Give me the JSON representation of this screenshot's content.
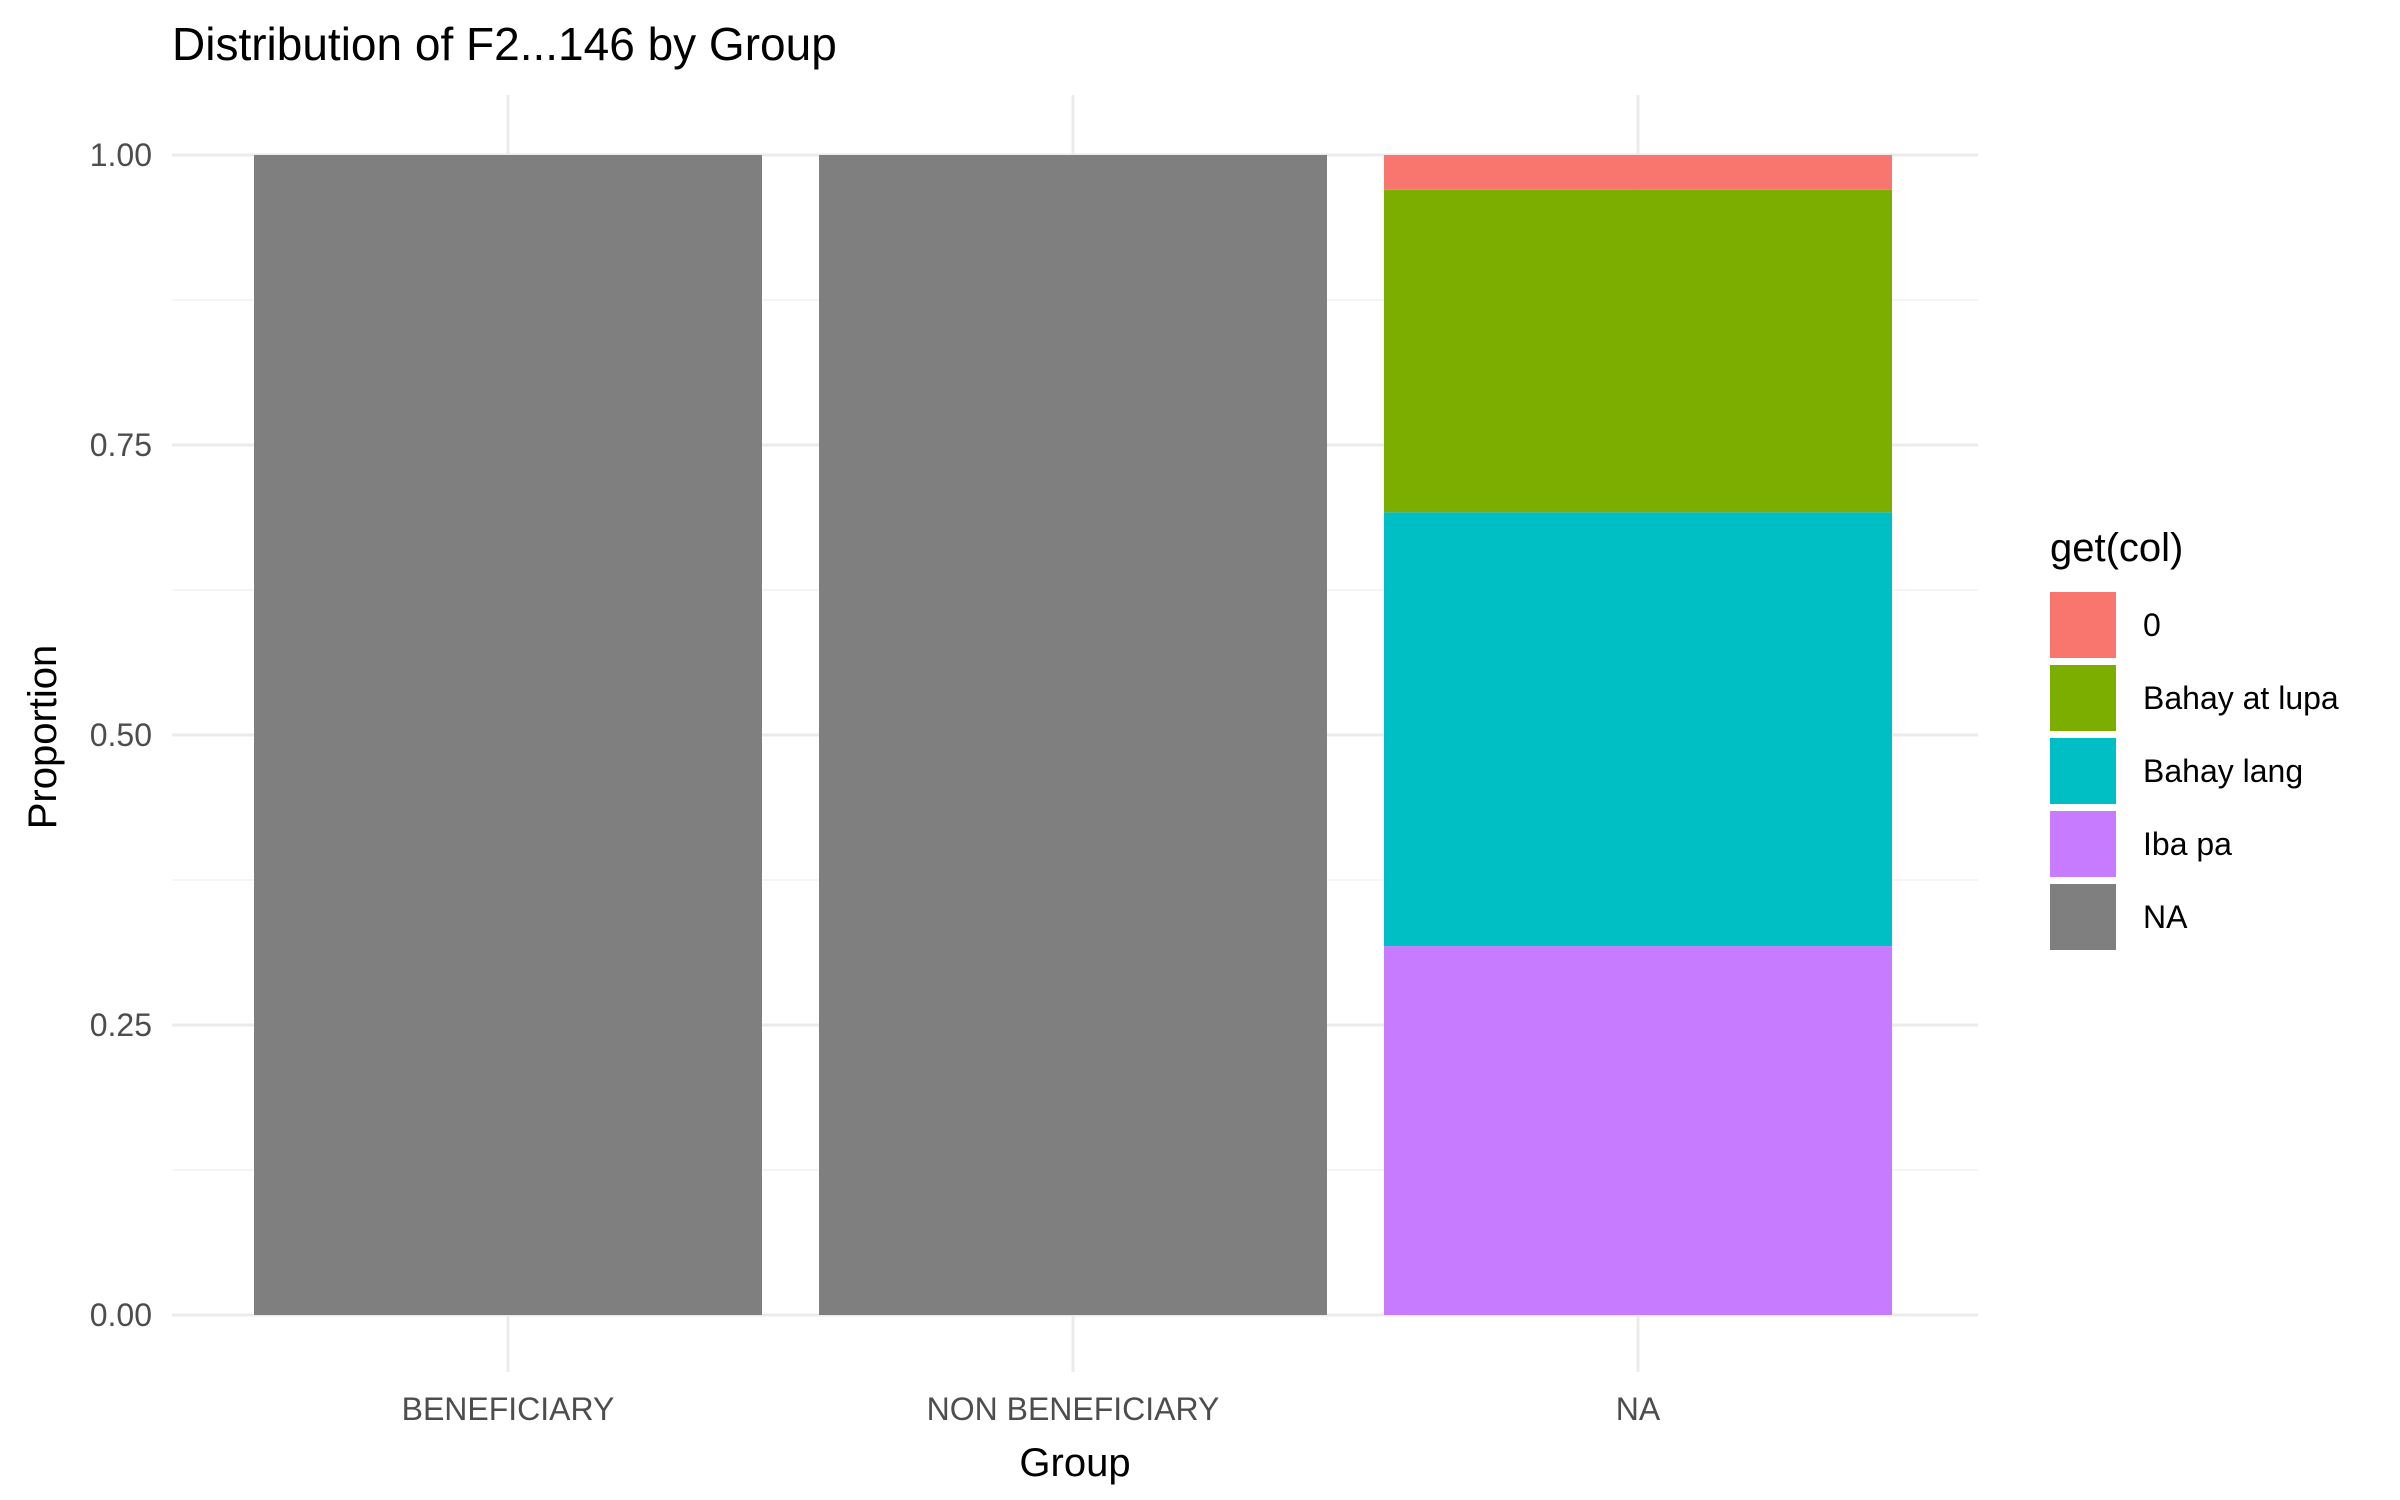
{
  "chart_data": {
    "type": "bar",
    "stacked": true,
    "title": "Distribution of F2...146 by Group",
    "xlabel": "Group",
    "ylabel": "Proportion",
    "ylim": [
      0,
      1
    ],
    "yticks": [
      0,
      0.25,
      0.5,
      0.75,
      1
    ],
    "ytick_labels": [
      "0.00",
      "0.25",
      "0.50",
      "0.75",
      "1.00"
    ],
    "grid": true,
    "legend_position": "right",
    "legend_title": "get(col)",
    "categories": [
      "BENEFICIARY",
      "NON BENEFICIARY",
      "NA"
    ],
    "series": [
      {
        "name": "0",
        "color": "#F8766D",
        "values": [
          0,
          0,
          0.03
        ]
      },
      {
        "name": "Bahay at lupa",
        "color": "#7CAE00",
        "values": [
          0,
          0,
          0.278
        ]
      },
      {
        "name": "Bahay lang",
        "color": "#00BFC4",
        "values": [
          0,
          0,
          0.374
        ]
      },
      {
        "name": "Iba pa",
        "color": "#C77CFF",
        "values": [
          0,
          0,
          0.318
        ]
      },
      {
        "name": "NA",
        "color": "#7F7F7F",
        "values": [
          1,
          1,
          0
        ]
      }
    ]
  }
}
